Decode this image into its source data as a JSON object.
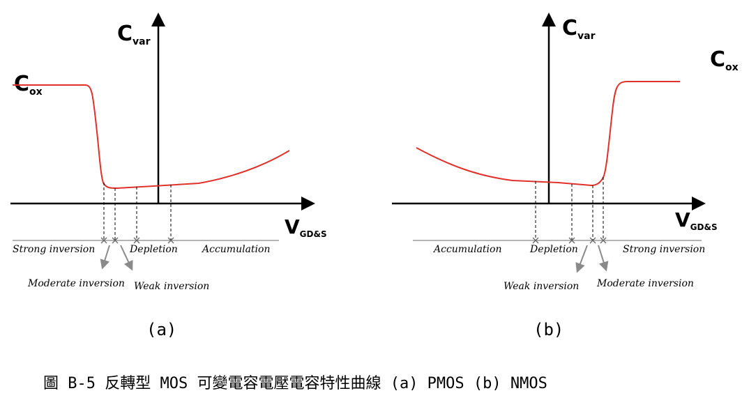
{
  "panel_a": {
    "y_axis_main": "C",
    "y_axis_sub": "var",
    "level_main": "C",
    "level_sub": "ox",
    "x_axis_main": "V",
    "x_axis_sub": "GD&S",
    "regions": [
      "Strong inversion",
      "Depletion",
      "Accumulation"
    ],
    "callouts": [
      "Moderate inversion",
      "Weak inversion"
    ],
    "sub_label": "(a)"
  },
  "panel_b": {
    "y_axis_main": "C",
    "y_axis_sub": "var",
    "level_main": "C",
    "level_sub": "ox",
    "x_axis_main": "V",
    "x_axis_sub": "GD&S",
    "regions": [
      "Accumulation",
      "Depletion",
      "Strong inversion"
    ],
    "callouts": [
      "Weak inversion",
      "Moderate inversion"
    ],
    "sub_label": "(b)"
  },
  "caption": "圖 B-5 反轉型 MOS 可變電容電壓電容特性曲線 (a) PMOS (b) NMOS",
  "colors": {
    "curve": "#e0312b",
    "axis": "#000000",
    "baseline": "#9a9a9a",
    "arrow": "#8a8a8a"
  }
}
